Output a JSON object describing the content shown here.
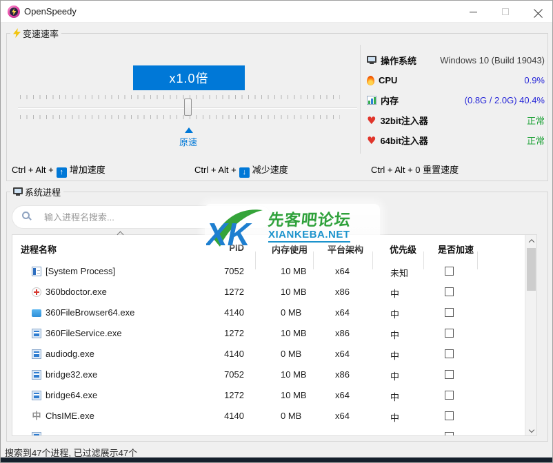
{
  "titlebar": {
    "app_name": "OpenSpeedy"
  },
  "speed_panel": {
    "title": "变速速率",
    "rate_button": "x1.0倍",
    "origin_marker": "原速",
    "hotkeys": {
      "increase": {
        "prefix": "Ctrl + Alt +",
        "key": "↑",
        "label": "增加速度"
      },
      "decrease": {
        "prefix": "Ctrl + Alt +",
        "key": "↓",
        "label": "减少速度"
      },
      "reset": {
        "text": "Ctrl + Alt + 0 重置速度"
      }
    }
  },
  "info_panel": {
    "rows": [
      {
        "icon": "monitor-icon",
        "label": "操作系统",
        "value": "Windows 10 (Build 19043)",
        "value_color": "#3c3c3c"
      },
      {
        "icon": "flame-icon",
        "label": "CPU",
        "value": "0.9%",
        "value_color": "#2626d8"
      },
      {
        "icon": "memory-chart-icon",
        "label": "内存",
        "value": "(0.8G / 2.0G) 40.4%",
        "value_color": "#2626d8"
      },
      {
        "icon": "heart-icon",
        "label": "32bit注入器",
        "value": "正常",
        "value_color": "#23a33c"
      },
      {
        "icon": "heart-icon",
        "label": "64bit注入器",
        "value": "正常",
        "value_color": "#23a33c"
      }
    ]
  },
  "process_panel": {
    "title": "系统进程",
    "search_placeholder": "输入进程名搜索...",
    "columns": [
      "进程名称",
      "PID",
      "内存使用",
      "平台架构",
      "优先级",
      "是否加速"
    ],
    "rows": [
      {
        "icon": "system-grid-icon",
        "name": "[System Process]",
        "pid": "7052",
        "mem": "10 MB",
        "arch": "x64",
        "prio": "未知",
        "checked": false
      },
      {
        "icon": "red-cross-icon",
        "name": "360bdoctor.exe",
        "pid": "1272",
        "mem": "10 MB",
        "arch": "x86",
        "prio": "中",
        "checked": false
      },
      {
        "icon": "blue-folder-icon",
        "name": "360FileBrowser64.exe",
        "pid": "4140",
        "mem": "0 MB",
        "arch": "x64",
        "prio": "中",
        "checked": false
      },
      {
        "icon": "window-icon",
        "name": "360FileService.exe",
        "pid": "1272",
        "mem": "10 MB",
        "arch": "x86",
        "prio": "中",
        "checked": false
      },
      {
        "icon": "window-icon",
        "name": "audiodg.exe",
        "pid": "4140",
        "mem": "0 MB",
        "arch": "x64",
        "prio": "中",
        "checked": false
      },
      {
        "icon": "window-icon",
        "name": "bridge32.exe",
        "pid": "7052",
        "mem": "10 MB",
        "arch": "x86",
        "prio": "中",
        "checked": false
      },
      {
        "icon": "window-icon",
        "name": "bridge64.exe",
        "pid": "1272",
        "mem": "10 MB",
        "arch": "x64",
        "prio": "中",
        "checked": false
      },
      {
        "icon": "ime-icon",
        "name": "ChsIME.exe",
        "pid": "4140",
        "mem": "0 MB",
        "arch": "x64",
        "prio": "中",
        "checked": false
      },
      {
        "icon": "window-icon",
        "name": "",
        "pid": "",
        "mem": "",
        "arch": "",
        "prio": "",
        "checked": false,
        "partial": true
      }
    ],
    "status": "搜索到47个进程, 已过滤展示47个"
  },
  "watermark": {
    "logo": "XK",
    "title": "先客吧论坛",
    "site": "XIANKEBA.NET"
  },
  "icon_glyphs": {
    "heart-icon": "♥",
    "ime-icon": "中"
  },
  "colors": {
    "accent_blue": "#0078d7",
    "value_blue": "#2626d8",
    "ok_green": "#23a33c",
    "watermark_green": "#2fa13b",
    "watermark_blue": "#1c93cc"
  }
}
